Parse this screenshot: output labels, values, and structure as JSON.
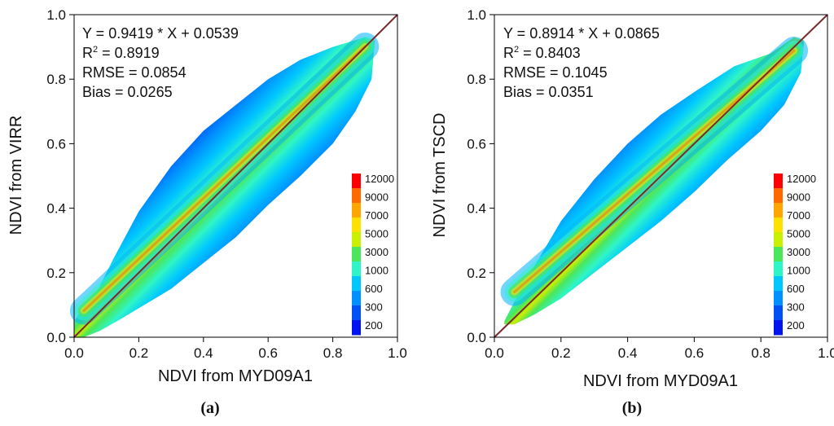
{
  "chart_data": [
    {
      "type": "heatmap",
      "panel_label": "(a)",
      "xlabel": "NDVI from MYD09A1",
      "ylabel": "NDVI from VIRR",
      "xlim": [
        0.0,
        1.0
      ],
      "ylim": [
        0.0,
        1.0
      ],
      "ticks": [
        "0.0",
        "0.2",
        "0.4",
        "0.6",
        "0.8",
        "1.0"
      ],
      "regression": {
        "slope": 0.9419,
        "intercept": 0.0539
      },
      "stats": {
        "equation": "Y = 0.9419 * X + 0.0539",
        "r2_prefix": "R",
        "r2_sup": "2",
        "r2_value": " = 0.8919",
        "rmse": "RMSE = 0.0854",
        "bias": "Bias = 0.0265"
      },
      "point_cloud_outline": [
        [
          0.0,
          0.0
        ],
        [
          0.03,
          0.0
        ],
        [
          0.08,
          0.02
        ],
        [
          0.15,
          0.06
        ],
        [
          0.2,
          0.09
        ],
        [
          0.3,
          0.15
        ],
        [
          0.4,
          0.23
        ],
        [
          0.5,
          0.31
        ],
        [
          0.6,
          0.41
        ],
        [
          0.7,
          0.5
        ],
        [
          0.8,
          0.6
        ],
        [
          0.87,
          0.7
        ],
        [
          0.92,
          0.8
        ],
        [
          0.93,
          0.92
        ],
        [
          0.9,
          0.93
        ],
        [
          0.8,
          0.9
        ],
        [
          0.7,
          0.86
        ],
        [
          0.6,
          0.8
        ],
        [
          0.5,
          0.72
        ],
        [
          0.4,
          0.64
        ],
        [
          0.3,
          0.53
        ],
        [
          0.2,
          0.39
        ],
        [
          0.12,
          0.24
        ],
        [
          0.07,
          0.14
        ],
        [
          0.02,
          0.08
        ],
        [
          0.0,
          0.05
        ]
      ],
      "point_cloud_outline_units": "data units (x, y)"
    },
    {
      "type": "heatmap",
      "panel_label": "(b)",
      "xlabel": "NDVI from MYD09A1",
      "ylabel": "NDVI from TSCD",
      "xlim": [
        0.0,
        1.0
      ],
      "ylim": [
        0.0,
        1.0
      ],
      "ticks": [
        "0.0",
        "0.2",
        "0.4",
        "0.6",
        "0.8",
        "1.0"
      ],
      "regression": {
        "slope": 0.8914,
        "intercept": 0.0865
      },
      "stats": {
        "equation": "Y = 0.8914 * X + 0.0865",
        "r2_prefix": "R",
        "r2_sup": "2",
        "r2_value": " = 0.8403",
        "rmse": "RMSE = 0.1045",
        "bias": "Bias = 0.0351"
      },
      "point_cloud_outline": [
        [
          0.03,
          0.04
        ],
        [
          0.06,
          0.04
        ],
        [
          0.12,
          0.07
        ],
        [
          0.2,
          0.12
        ],
        [
          0.3,
          0.2
        ],
        [
          0.4,
          0.28
        ],
        [
          0.5,
          0.36
        ],
        [
          0.6,
          0.45
        ],
        [
          0.7,
          0.55
        ],
        [
          0.8,
          0.64
        ],
        [
          0.87,
          0.72
        ],
        [
          0.92,
          0.82
        ],
        [
          0.93,
          0.92
        ],
        [
          0.9,
          0.93
        ],
        [
          0.83,
          0.88
        ],
        [
          0.72,
          0.84
        ],
        [
          0.6,
          0.76
        ],
        [
          0.5,
          0.69
        ],
        [
          0.4,
          0.6
        ],
        [
          0.3,
          0.49
        ],
        [
          0.2,
          0.36
        ],
        [
          0.12,
          0.22
        ],
        [
          0.07,
          0.13
        ],
        [
          0.04,
          0.07
        ],
        [
          0.03,
          0.05
        ]
      ],
      "point_cloud_outline_units": "data units (x, y)"
    }
  ],
  "colorbar": {
    "labels": [
      "12000",
      "9000",
      "7000",
      "5000",
      "3000",
      "1000",
      "600",
      "300",
      "200"
    ],
    "colors": [
      "#FF0000",
      "#FF6A00",
      "#FFA500",
      "#FFE100",
      "#C8F000",
      "#4CE65A",
      "#2EF5C8",
      "#00C8FF",
      "#0090FF",
      "#0050F5",
      "#0014F0"
    ]
  },
  "regression_line_color": "#7A2A2A"
}
